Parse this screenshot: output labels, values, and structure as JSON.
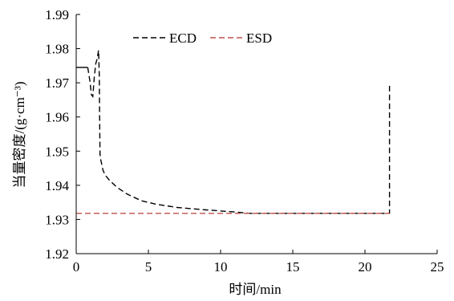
{
  "chart_data": {
    "type": "line",
    "title": "",
    "xlabel": "时间/min",
    "ylabel": "当量密度/(g·cm⁻³)",
    "xlim": [
      0,
      25
    ],
    "ylim": [
      1.92,
      1.99
    ],
    "xticks": [
      "0",
      "5",
      "10",
      "15",
      "20",
      "25"
    ],
    "yticks": [
      "1.92",
      "1.93",
      "1.94",
      "1.95",
      "1.96",
      "1.97",
      "1.98",
      "1.99"
    ],
    "grid": false,
    "legend_position": "top-center",
    "series": [
      {
        "name": "ECD",
        "color": "#000000",
        "dash": "dashed",
        "points": [
          [
            0.8,
            1.9745
          ],
          [
            0.95,
            1.9705
          ],
          [
            1.05,
            1.9665
          ],
          [
            1.15,
            1.966
          ],
          [
            1.25,
            1.9715
          ],
          [
            1.35,
            1.9755
          ],
          [
            1.45,
            1.977
          ],
          [
            1.55,
            1.9795
          ],
          [
            1.6,
            1.972
          ],
          [
            1.62,
            1.96
          ],
          [
            1.65,
            1.949
          ],
          [
            1.7,
            1.9475
          ],
          [
            1.85,
            1.9445
          ],
          [
            2.0,
            1.943
          ],
          [
            2.3,
            1.9415
          ],
          [
            2.8,
            1.9395
          ],
          [
            3.5,
            1.9375
          ],
          [
            4.5,
            1.9355
          ],
          [
            5.5,
            1.9345
          ],
          [
            7,
            1.9335
          ],
          [
            9,
            1.9328
          ],
          [
            11,
            1.9322
          ],
          [
            12,
            1.9318
          ],
          [
            15,
            1.9318
          ],
          [
            20,
            1.9318
          ],
          [
            21.7,
            1.9318
          ],
          [
            21.7,
            1.9695
          ]
        ]
      },
      {
        "name": "ESD",
        "color": "#c0504d",
        "dash": "dashed",
        "points": [
          [
            0,
            1.9318
          ],
          [
            21.7,
            1.9318
          ]
        ]
      },
      {
        "name": "",
        "color": "#000000",
        "dash": "solid",
        "points": [
          [
            0,
            1.9745
          ],
          [
            0.8,
            1.9745
          ]
        ]
      }
    ]
  }
}
